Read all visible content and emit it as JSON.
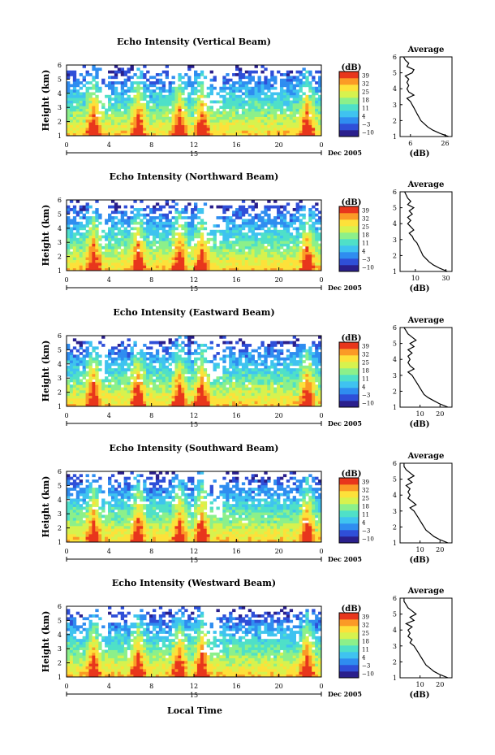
{
  "figure": {
    "xlabel": "Local Time",
    "date_label": "Dec 2005",
    "date_tick": "15",
    "colorbar_unit": "(dB)",
    "colorbar_ticks": [
      "39",
      "32",
      "25",
      "18",
      "11",
      "4",
      "−3",
      "−10"
    ],
    "colorbar_colors": [
      "#2a1f8c",
      "#2f4fd8",
      "#2f8df0",
      "#3fc3f0",
      "#4fe0c8",
      "#8cf08a",
      "#d7f24e",
      "#fde13a",
      "#fb9a26",
      "#e8361c"
    ],
    "avg_title": "Average",
    "avg_xlabel": "(dB)"
  },
  "chart_data": [
    {
      "type": "heatmap",
      "title": "Echo Intensity (Vertical Beam)",
      "ylabel": "Height (km)",
      "x_ticks": [
        "0",
        "4",
        "8",
        "12",
        "16",
        "20",
        "0"
      ],
      "y_ticks": [
        "1",
        "2",
        "3",
        "4",
        "5",
        "6"
      ],
      "xlim": [
        0,
        24
      ],
      "ylim": [
        1,
        6
      ],
      "color_scale": [
        -10,
        39
      ],
      "average_profile": {
        "title": "Average",
        "xlabel": "(dB)",
        "x_ticks": [
          "6",
          "26"
        ],
        "xlim": [
          0,
          30
        ],
        "height": [
          1.0,
          1.2,
          1.4,
          1.6,
          1.8,
          2.0,
          2.2,
          2.4,
          2.6,
          2.8,
          3.0,
          3.2,
          3.4,
          3.6,
          3.8,
          4.0,
          4.2,
          4.4,
          4.6,
          4.8,
          5.0,
          5.2,
          5.4,
          5.6,
          5.8,
          6.0
        ],
        "value": [
          28,
          23,
          19,
          16,
          14,
          12,
          11,
          10,
          9,
          8,
          7,
          6,
          4,
          8,
          5,
          4,
          5,
          4,
          5,
          3,
          7,
          8,
          4,
          5,
          3,
          2
        ]
      }
    },
    {
      "type": "heatmap",
      "title": "Echo Intensity (Northward Beam)",
      "ylabel": "Height (km)",
      "x_ticks": [
        "0",
        "4",
        "8",
        "12",
        "16",
        "20",
        "0"
      ],
      "y_ticks": [
        "1",
        "2",
        "3",
        "4",
        "5",
        "6"
      ],
      "xlim": [
        0,
        24
      ],
      "ylim": [
        1,
        6
      ],
      "color_scale": [
        -10,
        39
      ],
      "average_profile": {
        "title": "Average",
        "xlabel": "(dB)",
        "x_ticks": [
          "10",
          "30"
        ],
        "xlim": [
          0,
          34
        ],
        "height": [
          1.0,
          1.2,
          1.4,
          1.6,
          1.8,
          2.0,
          2.2,
          2.4,
          2.6,
          2.8,
          3.0,
          3.2,
          3.4,
          3.6,
          3.8,
          4.0,
          4.2,
          4.4,
          4.6,
          4.8,
          5.0,
          5.2,
          5.4,
          5.6,
          5.8,
          6.0
        ],
        "value": [
          31,
          26,
          22,
          19,
          17,
          15,
          14,
          13,
          12,
          11,
          9,
          8,
          6,
          9,
          7,
          5,
          7,
          5,
          8,
          6,
          9,
          5,
          7,
          5,
          4,
          3
        ]
      }
    },
    {
      "type": "heatmap",
      "title": "Echo Intensity (Eastward Beam)",
      "ylabel": "Height (km)",
      "x_ticks": [
        "0",
        "4",
        "8",
        "12",
        "16",
        "20",
        "0"
      ],
      "y_ticks": [
        "1",
        "2",
        "3",
        "4",
        "5",
        "6"
      ],
      "xlim": [
        0,
        24
      ],
      "ylim": [
        1,
        6
      ],
      "color_scale": [
        -10,
        39
      ],
      "average_profile": {
        "title": "Average",
        "xlabel": "(dB)",
        "x_ticks": [
          "10",
          "20"
        ],
        "xlim": [
          0,
          26
        ],
        "height": [
          1.0,
          1.2,
          1.4,
          1.6,
          1.8,
          2.0,
          2.2,
          2.4,
          2.6,
          2.8,
          3.0,
          3.2,
          3.4,
          3.6,
          3.8,
          4.0,
          4.2,
          4.4,
          4.6,
          4.8,
          5.0,
          5.2,
          5.4,
          5.6,
          5.8,
          6.0
        ],
        "value": [
          24,
          20,
          17,
          14,
          12,
          11,
          10,
          9,
          8,
          7,
          6,
          4,
          7,
          5,
          4,
          5,
          4,
          6,
          4,
          7,
          5,
          8,
          6,
          4,
          3,
          2
        ]
      }
    },
    {
      "type": "heatmap",
      "title": "Echo Intensity (Southward Beam)",
      "ylabel": "Height (km)",
      "x_ticks": [
        "0",
        "4",
        "8",
        "12",
        "16",
        "20",
        "0"
      ],
      "y_ticks": [
        "1",
        "2",
        "3",
        "4",
        "5",
        "6"
      ],
      "xlim": [
        0,
        24
      ],
      "ylim": [
        1,
        6
      ],
      "color_scale": [
        -10,
        39
      ],
      "average_profile": {
        "title": "Average",
        "xlabel": "(dB)",
        "x_ticks": [
          "10",
          "20"
        ],
        "xlim": [
          0,
          26
        ],
        "height": [
          1.0,
          1.2,
          1.4,
          1.6,
          1.8,
          2.0,
          2.2,
          2.4,
          2.6,
          2.8,
          3.0,
          3.2,
          3.4,
          3.6,
          3.8,
          4.0,
          4.2,
          4.4,
          4.6,
          4.8,
          5.0,
          5.2,
          5.4,
          5.6,
          5.8,
          6.0
        ],
        "value": [
          24,
          20,
          17,
          15,
          13,
          12,
          11,
          10,
          9,
          8,
          7,
          5,
          8,
          6,
          4,
          5,
          4,
          5,
          3,
          6,
          4,
          7,
          5,
          3,
          2,
          2
        ]
      }
    },
    {
      "type": "heatmap",
      "title": "Echo Intensity (Westward Beam)",
      "ylabel": "Height (km)",
      "x_ticks": [
        "0",
        "4",
        "8",
        "12",
        "16",
        "20",
        "0"
      ],
      "y_ticks": [
        "1",
        "2",
        "3",
        "4",
        "5",
        "6"
      ],
      "xlim": [
        0,
        24
      ],
      "ylim": [
        1,
        6
      ],
      "color_scale": [
        -10,
        39
      ],
      "average_profile": {
        "title": "Average",
        "xlabel": "(dB)",
        "x_ticks": [
          "10",
          "20"
        ],
        "xlim": [
          0,
          26
        ],
        "height": [
          1.0,
          1.2,
          1.4,
          1.6,
          1.8,
          2.0,
          2.2,
          2.4,
          2.6,
          2.8,
          3.0,
          3.2,
          3.4,
          3.6,
          3.8,
          4.0,
          4.2,
          4.4,
          4.6,
          4.8,
          5.0,
          5.2,
          5.4,
          5.6,
          5.8,
          6.0
        ],
        "value": [
          24,
          20,
          17,
          15,
          13,
          12,
          11,
          10,
          9,
          8,
          7,
          5,
          6,
          4,
          5,
          4,
          6,
          3,
          7,
          5,
          8,
          6,
          4,
          3,
          2,
          2
        ]
      }
    }
  ]
}
